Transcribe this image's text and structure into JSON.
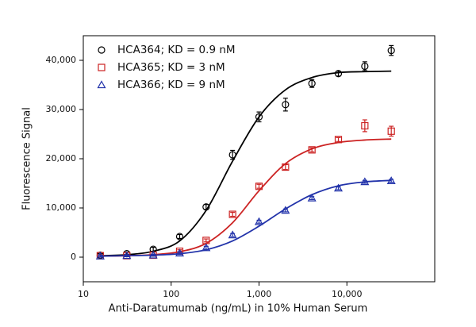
{
  "chart_data": {
    "type": "scatter",
    "x_label": "Anti-Daratumumab (ng/mL) in 10% Human Serum",
    "y_label": "Fluorescence Signal",
    "x_log": true,
    "xlim": [
      10,
      100000
    ],
    "xticks": [
      10,
      100,
      {
        "value": 1000,
        "label": "1,000"
      },
      {
        "value": 10000,
        "label": "10,000"
      }
    ],
    "ylim": [
      -5000,
      45000
    ],
    "yticks": [
      0,
      {
        "value": 10000,
        "label": "10,000"
      },
      {
        "value": 20000,
        "label": "20,000"
      },
      {
        "value": 30000,
        "label": "30,000"
      },
      {
        "value": 40000,
        "label": "40,000"
      }
    ],
    "legend": "top-left",
    "x": [
      15.6,
      31.25,
      62.5,
      125,
      250,
      500,
      1000,
      2000,
      4000,
      8000,
      16000,
      32000
    ],
    "series": [
      {
        "name": "HCA364; KD = 0.9 nM",
        "color": "#000000",
        "marker": "circle",
        "values": [
          400,
          700,
          1600,
          4200,
          10200,
          20800,
          28500,
          31000,
          35300,
          37300,
          38800,
          42000
        ],
        "errors": [
          300,
          300,
          400,
          400,
          500,
          900,
          1000,
          1300,
          800,
          500,
          900,
          1000
        ],
        "fit": [
          300,
          500,
          1200,
          3300,
          9500,
          19500,
          28500,
          34000,
          36500,
          37500,
          37700,
          37800
        ]
      },
      {
        "name": "HCA365; KD = 3 nM",
        "color": "#cc2222",
        "marker": "square",
        "values": [
          300,
          300,
          400,
          1200,
          3400,
          8700,
          14400,
          18300,
          21800,
          23900,
          26700,
          25600
        ],
        "errors": [
          200,
          200,
          200,
          300,
          300,
          400,
          400,
          500,
          400,
          400,
          1200,
          1000
        ],
        "fit": [
          200,
          300,
          500,
          1100,
          2800,
          7000,
          13500,
          19000,
          22000,
          23300,
          23800,
          24000
        ]
      },
      {
        "name": "HCA366; KD = 9 nM",
        "color": "#2233aa",
        "marker": "triangle",
        "values": [
          200,
          300,
          400,
          800,
          1900,
          4500,
          7200,
          9500,
          12000,
          14000,
          15300,
          15500
        ],
        "errors": [
          200,
          200,
          200,
          300,
          300,
          300,
          300,
          300,
          300,
          300,
          300,
          300
        ],
        "fit": [
          200,
          300,
          400,
          700,
          1500,
          3300,
          6300,
          9800,
          12700,
          14500,
          15300,
          15600
        ]
      }
    ]
  }
}
